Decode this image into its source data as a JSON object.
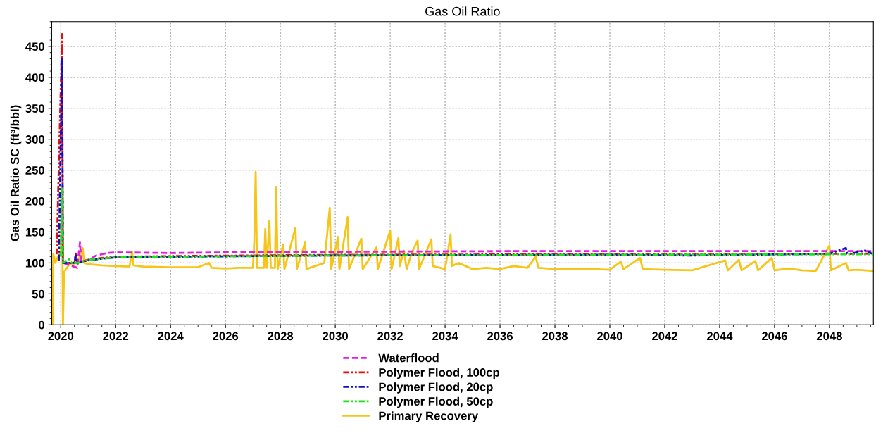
{
  "chart_data": {
    "type": "line",
    "title": "Gas Oil Ratio",
    "ylabel": "Gas Oil Ratio SC (ft³/bbl)",
    "xlim": [
      2019.67,
      2049.6
    ],
    "xticks": [
      2020,
      2022,
      2024,
      2026,
      2028,
      2030,
      2032,
      2034,
      2036,
      2038,
      2040,
      2042,
      2044,
      2046,
      2048
    ],
    "ylim": [
      0,
      490
    ],
    "yticks": [
      0,
      50,
      100,
      150,
      200,
      250,
      300,
      350,
      400,
      450
    ],
    "grid": true,
    "legend": "bottom",
    "marker": "none",
    "series": [
      {
        "name": "Waterflood",
        "color": "#e020e0",
        "line_style": "dashed",
        "x": [
          2020.1,
          2020.6,
          2020.7,
          2020.75,
          2021.0,
          2021.3,
          2021.7,
          2022,
          2024,
          2026,
          2030,
          2036,
          2049.6
        ],
        "values": [
          100,
          92,
          133,
          102,
          105,
          112,
          116,
          117,
          116,
          117,
          118,
          119,
          119
        ]
      },
      {
        "name": "Polymer Flood, 100cp",
        "color": "#e01010",
        "line_style": "dotted",
        "x": [
          2019.85,
          2020.05,
          2020.08,
          2020.5,
          2020.55,
          2020.6,
          2021,
          2021.5,
          2022,
          2024,
          2030,
          2040,
          2049.6
        ],
        "values": [
          114,
          470,
          100,
          100,
          115,
          100,
          105,
          108,
          110,
          111,
          113,
          114,
          115
        ]
      },
      {
        "name": "Polymer Flood, 20cp",
        "color": "#1010c0",
        "line_style": "dotted",
        "x": [
          2019.93,
          2020.05,
          2020.08,
          2020.5,
          2020.55,
          2020.6,
          2021,
          2021.5,
          2022,
          2024,
          2030,
          2040,
          2043,
          2045,
          2046.5,
          2048,
          2048.6,
          2048.65,
          2049.3,
          2049.6
        ],
        "values": [
          104,
          432,
          100,
          100,
          115,
          100,
          104,
          107,
          109,
          110,
          112,
          113,
          112,
          113,
          114,
          115,
          124,
          114,
          120,
          114
        ]
      },
      {
        "name": "Polymer Flood, 50cp",
        "color": "#20e020",
        "line_style": "dotted",
        "x": [
          2020.0,
          2020.05,
          2020.08,
          2020.3,
          2020.4,
          2020.6,
          2021,
          2021.5,
          2022,
          2024,
          2030,
          2040,
          2049.6
        ],
        "values": [
          110,
          220,
          100,
          106,
          100,
          100,
          105,
          107,
          109,
          110,
          112,
          113,
          114
        ]
      },
      {
        "name": "Primary Recovery",
        "color": "#f5c518",
        "line_style": "solid",
        "x": [
          2019.7,
          2019.73,
          2019.8,
          2019.9,
          2020.0,
          2020.05,
          2020.08,
          2020.12,
          2020.3,
          2020.6,
          2020.8,
          2020.85,
          2021.0,
          2021.5,
          2022.0,
          2022.5,
          2022.6,
          2022.65,
          2023,
          2024,
          2025,
          2025.4,
          2025.5,
          2026,
          2026.5,
          2027.0,
          2027.05,
          2027.1,
          2027.15,
          2027.4,
          2027.45,
          2027.5,
          2027.6,
          2027.65,
          2027.8,
          2027.85,
          2027.9,
          2028.1,
          2028.15,
          2028.55,
          2028.6,
          2028.9,
          2028.95,
          2029.6,
          2029.8,
          2029.85,
          2030.1,
          2030.15,
          2030.45,
          2030.5,
          2030.95,
          2031.0,
          2031.5,
          2031.55,
          2032.0,
          2032.05,
          2032.3,
          2032.35,
          2032.5,
          2032.6,
          2032.8,
          2033.0,
          2033.05,
          2033.5,
          2033.55,
          2034.0,
          2034.2,
          2034.25,
          2034.5,
          2035,
          2035.5,
          2036,
          2036.5,
          2037,
          2037.3,
          2037.4,
          2038,
          2039,
          2040,
          2040.4,
          2040.5,
          2041.1,
          2041.2,
          2042,
          2043,
          2044.2,
          2044.3,
          2044.7,
          2044.8,
          2045.3,
          2045.4,
          2045.9,
          2046.0,
          2046.5,
          2047,
          2047.5,
          2048.0,
          2048.05,
          2048.6,
          2048.7,
          2049,
          2049.6
        ],
        "values": [
          0,
          115,
          100,
          110,
          118,
          200,
          0,
          85,
          97,
          100,
          124,
          100,
          98,
          96,
          95,
          94,
          118,
          96,
          94,
          93,
          93,
          100,
          92,
          91,
          92,
          92,
          135,
          247,
          92,
          92,
          155,
          92,
          168,
          92,
          92,
          223,
          90,
          130,
          90,
          157,
          90,
          133,
          90,
          100,
          189,
          90,
          142,
          90,
          174,
          90,
          139,
          90,
          125,
          90,
          152,
          90,
          140,
          95,
          120,
          90,
          118,
          136,
          90,
          138,
          95,
          90,
          146,
          95,
          100,
          90,
          92,
          90,
          95,
          92,
          110,
          92,
          90,
          91,
          89,
          102,
          90,
          108,
          90,
          89,
          88,
          104,
          88,
          105,
          88,
          103,
          88,
          108,
          88,
          91,
          88,
          87,
          128,
          88,
          100,
          88,
          89,
          87
        ]
      }
    ]
  }
}
